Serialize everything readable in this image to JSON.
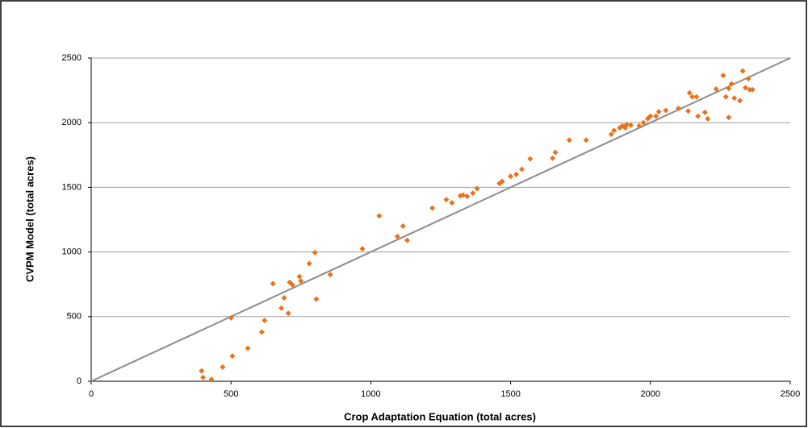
{
  "chart_data": {
    "type": "scatter",
    "x_label": "Crop Adaptation Equation (total acres)",
    "y_label": "CVPM Model (total acres)",
    "xlim": [
      0,
      2500
    ],
    "ylim": [
      0,
      2500
    ],
    "xticks": [
      0,
      500,
      1000,
      1500,
      2000,
      2500
    ],
    "yticks": [
      0,
      500,
      1000,
      1500,
      2000,
      2500
    ],
    "grid": true,
    "diagonal": true,
    "diagonal_color": "#8c8c8c",
    "series": [
      {
        "color": "#e8731c",
        "x": [
          395,
          400,
          430,
          470,
          500,
          505,
          560,
          610,
          620,
          650,
          680,
          690,
          705,
          710,
          720,
          745,
          750,
          780,
          800,
          805,
          855,
          970,
          1030,
          1095,
          1115,
          1130,
          1220,
          1270,
          1290,
          1320,
          1330,
          1345,
          1365,
          1380,
          1460,
          1470,
          1500,
          1520,
          1540,
          1570,
          1650,
          1660,
          1710,
          1770,
          1860,
          1870,
          1890,
          1900,
          1910,
          1915,
          1930,
          1960,
          1975,
          1990,
          2000,
          2020,
          2030,
          2055,
          2100,
          2135,
          2140,
          2150,
          2165,
          2170,
          2195,
          2205,
          2235,
          2260,
          2270,
          2280,
          2280,
          2290,
          2300,
          2320,
          2330,
          2340,
          2350,
          2355,
          2365
        ],
        "values": [
          80,
          30,
          15,
          110,
          490,
          195,
          255,
          380,
          470,
          755,
          565,
          645,
          525,
          765,
          745,
          810,
          775,
          910,
          995,
          635,
          825,
          1025,
          1280,
          1120,
          1200,
          1090,
          1340,
          1405,
          1380,
          1435,
          1440,
          1430,
          1455,
          1490,
          1530,
          1545,
          1585,
          1600,
          1640,
          1720,
          1725,
          1770,
          1865,
          1865,
          1910,
          1940,
          1960,
          1975,
          1960,
          1985,
          1980,
          1975,
          2000,
          2030,
          2050,
          2050,
          2085,
          2095,
          2110,
          2090,
          2230,
          2200,
          2200,
          2050,
          2080,
          2030,
          2260,
          2365,
          2200,
          2040,
          2265,
          2300,
          2190,
          2170,
          2400,
          2270,
          2340,
          2255,
          2255
        ]
      }
    ]
  }
}
